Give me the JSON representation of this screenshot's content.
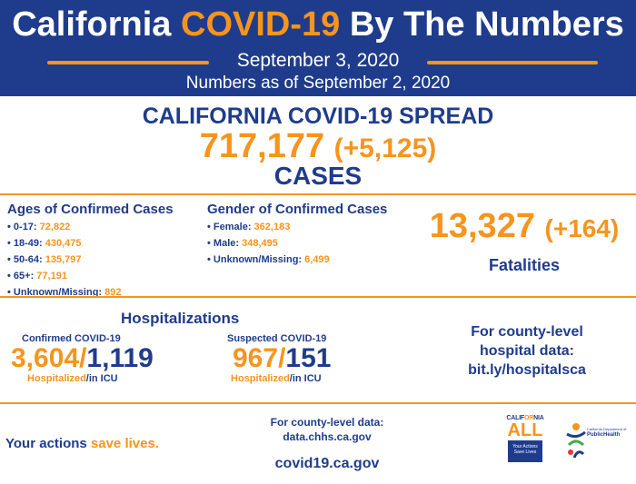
{
  "header": {
    "title_pre": "California ",
    "title_accent": "COVID-19",
    "title_post": " By The Numbers",
    "date": "September 3, 2020",
    "as_of": "Numbers as of September 2, 2020"
  },
  "spread": {
    "title": "CALIFORNIA COVID-19 SPREAD",
    "cases": "717,177",
    "cases_delta": "(+5,125)",
    "label": "CASES"
  },
  "ages": {
    "title": "Ages of Confirmed Cases",
    "items": [
      {
        "label": "• 0-17: ",
        "value": "72,822"
      },
      {
        "label": "• 18-49: ",
        "value": "430,475"
      },
      {
        "label": "• 50-64: ",
        "value": "135,797"
      },
      {
        "label": "• 65+: ",
        "value": "77,191"
      },
      {
        "label": "• Unknown/Missing: ",
        "value": "892"
      }
    ]
  },
  "gender": {
    "title": "Gender of Confirmed Cases",
    "items": [
      {
        "label": "• Female: ",
        "value": "362,183"
      },
      {
        "label": "• Male: ",
        "value": "348,495"
      },
      {
        "label": "• Unknown/Missing: ",
        "value": "6,499"
      }
    ]
  },
  "fatalities": {
    "value": "13,327",
    "delta": "(+164)",
    "label": "Fatalities"
  },
  "hospitalizations": {
    "title": "Hospitalizations",
    "confirmed": {
      "label": "Confirmed COVID-19",
      "hospitalized": "3,604",
      "separator": "/",
      "icu": "1,119",
      "sub_hosp": "Hospitalized",
      "sub_icu": "/in ICU"
    },
    "suspected": {
      "label": "Suspected COVID-19",
      "hospitalized": "967",
      "separator": "/",
      "icu": "151",
      "sub_hosp": "Hospitalized",
      "sub_icu": "/in ICU"
    },
    "county": {
      "line1": "For county-level",
      "line2": "hospital data:",
      "link": "bit.ly/hospitalsca"
    }
  },
  "footer": {
    "actions_pre": "Your actions ",
    "actions_accent": "save lives.",
    "county_data_label": "For county-level data:",
    "county_data_link": "data.chhs.ca.gov",
    "site": "covid19.ca.gov"
  },
  "logos": {
    "ca_top_pre": "CALIF",
    "ca_top_accent": "OR",
    "ca_top_post": "NIA",
    "ca_all": "ALL",
    "ca_box": "Your Actions Save Lives",
    "ph_small": "California Department of",
    "ph_big": "PublicHealth"
  },
  "colors": {
    "primary_blue": "#1f3c8c",
    "accent_orange": "#f7941d"
  }
}
